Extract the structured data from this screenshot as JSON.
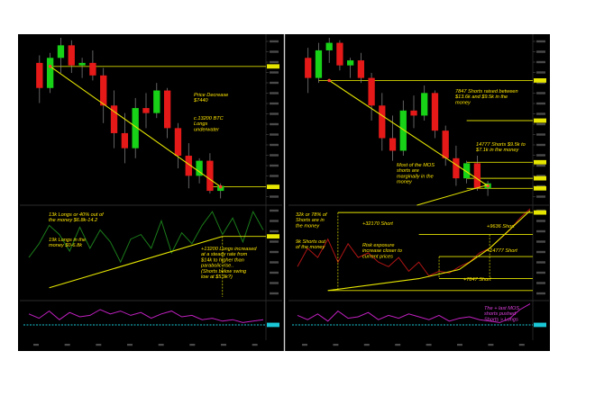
{
  "chart_data": [
    {
      "type": "candlestick",
      "panel": "left",
      "title": "",
      "price_range": [
        6400,
        9700
      ],
      "candles": [
        {
          "o": 9200,
          "h": 9350,
          "l": 8400,
          "c": 8700
        },
        {
          "o": 8700,
          "h": 9400,
          "l": 8600,
          "c": 9300
        },
        {
          "o": 9300,
          "h": 9700,
          "l": 9000,
          "c": 9550
        },
        {
          "o": 9550,
          "h": 9650,
          "l": 9000,
          "c": 9150
        },
        {
          "o": 9150,
          "h": 9300,
          "l": 8900,
          "c": 9200
        },
        {
          "o": 9200,
          "h": 9450,
          "l": 8850,
          "c": 8950
        },
        {
          "o": 8950,
          "h": 9100,
          "l": 8000,
          "c": 8350
        },
        {
          "o": 8350,
          "h": 8650,
          "l": 7500,
          "c": 7800
        },
        {
          "o": 7800,
          "h": 8200,
          "l": 7200,
          "c": 7500
        },
        {
          "o": 7500,
          "h": 8500,
          "l": 7300,
          "c": 8300
        },
        {
          "o": 8300,
          "h": 8600,
          "l": 7900,
          "c": 8200
        },
        {
          "o": 8200,
          "h": 8800,
          "l": 8100,
          "c": 8650
        },
        {
          "o": 8650,
          "h": 8700,
          "l": 7700,
          "c": 7900
        },
        {
          "o": 7900,
          "h": 8000,
          "l": 7100,
          "c": 7350
        },
        {
          "o": 7350,
          "h": 7600,
          "l": 6700,
          "c": 6950
        },
        {
          "o": 6950,
          "h": 7300,
          "l": 6800,
          "c": 7250
        },
        {
          "o": 7250,
          "h": 7400,
          "l": 6600,
          "c": 6650
        },
        {
          "o": 6650,
          "h": 6800,
          "l": 6500,
          "c": 6750
        }
      ],
      "trendline": [
        [
          1,
          9130
        ],
        [
          17,
          6730
        ]
      ],
      "levels": [
        9130,
        6730
      ],
      "annotations": [
        "Price Decrease $7440",
        "c.13200 BTC Longs underwater"
      ],
      "longs_series": {
        "range": [
          0,
          100
        ],
        "values": [
          45,
          60,
          80,
          70,
          52,
          78,
          55,
          75,
          62,
          40,
          65,
          70,
          55,
          85,
          50,
          72,
          60,
          80,
          95,
          70,
          88,
          62,
          95,
          75
        ],
        "trendline": [
          [
            2,
            12
          ],
          [
            19,
            68
          ]
        ],
        "level": 68
      },
      "longs_annotations": [
        "13k Longs or 40% out of the money $6.8k-14.2",
        "19k Longs in the money $0-6.8k",
        "+13200 Longs increased at a steady rate from $14k to higher than parabolic rise.. (Shorts below swing low at $5.9k?)"
      ],
      "indicator": {
        "range": [
          0,
          100
        ],
        "values": [
          60,
          45,
          70,
          40,
          65,
          50,
          55,
          75,
          60,
          70,
          55,
          65,
          45,
          60,
          70,
          50,
          55,
          40,
          45,
          35,
          40,
          30,
          35,
          40
        ],
        "level": 22
      }
    },
    {
      "type": "candlestick",
      "panel": "right",
      "title": "",
      "price_range": [
        6400,
        9700
      ],
      "candles": [
        {
          "o": 9300,
          "h": 9500,
          "l": 8600,
          "c": 8900
        },
        {
          "o": 8900,
          "h": 9600,
          "l": 8800,
          "c": 9450
        },
        {
          "o": 9450,
          "h": 9700,
          "l": 9200,
          "c": 9600
        },
        {
          "o": 9600,
          "h": 9650,
          "l": 9050,
          "c": 9150
        },
        {
          "o": 9150,
          "h": 9300,
          "l": 8900,
          "c": 9250
        },
        {
          "o": 9250,
          "h": 9400,
          "l": 8800,
          "c": 8900
        },
        {
          "o": 8900,
          "h": 9000,
          "l": 8050,
          "c": 8350
        },
        {
          "o": 8350,
          "h": 8600,
          "l": 7450,
          "c": 7700
        },
        {
          "o": 7700,
          "h": 8150,
          "l": 7250,
          "c": 7450
        },
        {
          "o": 7450,
          "h": 8450,
          "l": 7350,
          "c": 8250
        },
        {
          "o": 8250,
          "h": 8550,
          "l": 7900,
          "c": 8150
        },
        {
          "o": 8150,
          "h": 8750,
          "l": 8050,
          "c": 8600
        },
        {
          "o": 8600,
          "h": 8650,
          "l": 7700,
          "c": 7850
        },
        {
          "o": 7850,
          "h": 7950,
          "l": 7150,
          "c": 7300
        },
        {
          "o": 7300,
          "h": 7550,
          "l": 6750,
          "c": 6900
        },
        {
          "o": 6900,
          "h": 7250,
          "l": 6800,
          "c": 7200
        },
        {
          "o": 7200,
          "h": 7350,
          "l": 6650,
          "c": 6700
        },
        {
          "o": 6700,
          "h": 6850,
          "l": 6550,
          "c": 6800
        }
      ],
      "trendline": [
        [
          2,
          8850
        ],
        [
          17,
          6750
        ]
      ],
      "support_line": [
        [
          12,
          6400
        ],
        [
          17,
          6770
        ]
      ],
      "levels": [
        8850,
        8050,
        7220,
        6900,
        6700
      ],
      "annotations": [
        "7847 Shorts raised between $13.6k and $9.5k in the money",
        "14777 Shorts $9.5k to $7.1k in the money",
        "Most of the MOS shorts are marginally in the money"
      ],
      "shorts_series": {
        "range": [
          0,
          100
        ],
        "values": [
          35,
          55,
          45,
          65,
          40,
          60,
          45,
          50,
          40,
          35,
          45,
          30,
          40,
          25,
          30,
          28,
          35,
          40,
          50,
          55,
          65,
          75,
          88,
          98
        ],
        "curve": [
          [
            3,
            9
          ],
          [
            12,
            22
          ],
          [
            16,
            32
          ],
          [
            19,
            55
          ],
          [
            23,
            96
          ]
        ],
        "levels": [
          94,
          70,
          46,
          22,
          9
        ]
      },
      "shorts_annotations": [
        "32k or 78% of Shorts are in the money",
        "9k Shorts out of the money",
        "+32170 Short",
        "Risk exposure increase closer to current prices",
        "+9636 Short",
        "+14777 Short",
        "+7847 Short"
      ],
      "indicator": {
        "range": [
          0,
          100
        ],
        "values": [
          55,
          40,
          60,
          35,
          70,
          45,
          50,
          65,
          40,
          55,
          45,
          60,
          50,
          40,
          55,
          35,
          45,
          50,
          40,
          35,
          30,
          45,
          75,
          95
        ],
        "level": 22
      },
      "indicator_annotation": "The + last MOS shorts pushed Shorts > Longs"
    }
  ]
}
